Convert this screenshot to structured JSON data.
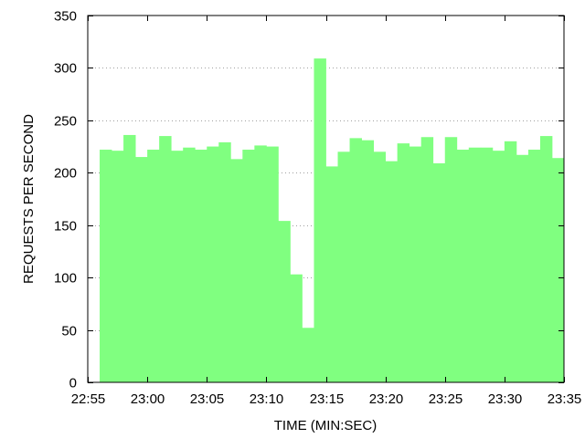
{
  "chart_data": {
    "type": "bar",
    "title": "",
    "xlabel": "TIME (MIN:SEC)",
    "ylabel": "REQUESTS PER SECOND",
    "ylim": [
      0,
      350
    ],
    "yticks": [
      0,
      50,
      100,
      150,
      200,
      250,
      300,
      350
    ],
    "xlim": [
      "22:55",
      "23:35"
    ],
    "xticks": [
      "22:55",
      "23:00",
      "23:05",
      "23:10",
      "23:15",
      "23:20",
      "23:25",
      "23:30",
      "23:35"
    ],
    "grid": "horizontal dotted",
    "legend": "none",
    "bar_color": "#80ff80",
    "categories": [
      "22:57",
      "22:58",
      "22:59",
      "23:00",
      "23:01",
      "23:02",
      "23:03",
      "23:04",
      "23:05",
      "23:06",
      "23:07",
      "23:08",
      "23:09",
      "23:10",
      "23:11",
      "23:12",
      "23:13",
      "23:14",
      "23:15",
      "23:16",
      "23:17",
      "23:18",
      "23:19",
      "23:20",
      "23:21",
      "23:22",
      "23:23",
      "23:24",
      "23:25",
      "23:26",
      "23:27",
      "23:28",
      "23:29",
      "23:30",
      "23:31",
      "23:32",
      "23:33",
      "23:34",
      "23:35"
    ],
    "values": [
      222,
      221,
      236,
      215,
      222,
      235,
      221,
      224,
      222,
      225,
      229,
      213,
      222,
      226,
      225,
      154,
      103,
      52,
      309,
      206,
      220,
      233,
      231,
      220,
      211,
      228,
      225,
      234,
      209,
      234,
      222,
      224,
      224,
      221,
      230,
      217,
      222,
      235,
      214
    ]
  }
}
